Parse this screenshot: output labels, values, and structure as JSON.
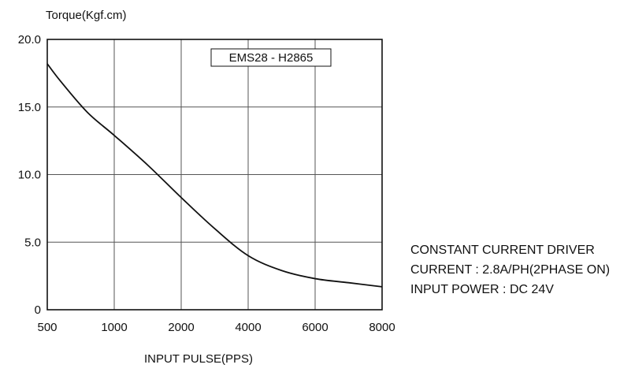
{
  "chart_data": {
    "type": "line",
    "ylabel": "Torque(Kgf.cm)",
    "xlabel": "INPUT PULSE(PPS)",
    "x_tick_labels": [
      "500",
      "1000",
      "2000",
      "4000",
      "6000",
      "8000"
    ],
    "y_tick_labels": [
      "0",
      "5.0",
      "10.0",
      "15.0",
      "20.0"
    ],
    "y_ticks": [
      0,
      5,
      10,
      15,
      20
    ],
    "ylim": [
      0,
      20
    ],
    "x_scale": "categorical-even",
    "grid": true,
    "series": [
      {
        "name": "EMS28 - H2865",
        "color": "#111111",
        "x": [
          500,
          600,
          800,
          1000,
          1500,
          2000,
          3000,
          4000,
          5000,
          6000,
          7000,
          8000
        ],
        "y": [
          18.2,
          16.9,
          14.6,
          12.9,
          10.7,
          8.3,
          6.0,
          4.0,
          2.9,
          2.3,
          2.0,
          1.7
        ]
      }
    ],
    "legend": {
      "label": "EMS28 - H2865",
      "placement": "top-center"
    }
  },
  "notes": [
    "CONSTANT CURRENT DRIVER",
    "CURRENT : 2.8A/PH(2PHASE ON)",
    "INPUT POWER : DC 24V"
  ]
}
